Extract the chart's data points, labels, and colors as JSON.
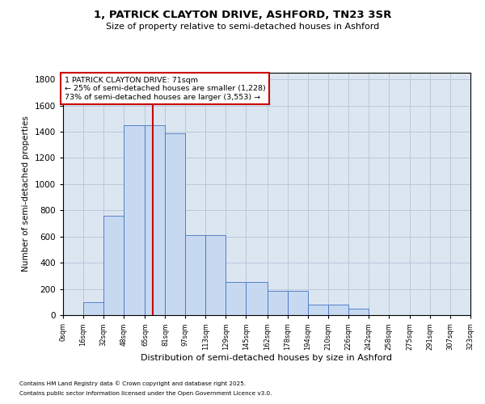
{
  "title_line1": "1, PATRICK CLAYTON DRIVE, ASHFORD, TN23 3SR",
  "title_line2": "Size of property relative to semi-detached houses in Ashford",
  "xlabel": "Distribution of semi-detached houses by size in Ashford",
  "ylabel": "Number of semi-detached properties",
  "footnote1": "Contains HM Land Registry data © Crown copyright and database right 2025.",
  "footnote2": "Contains public sector information licensed under the Open Government Licence v3.0.",
  "annotation_line1": "1 PATRICK CLAYTON DRIVE: 71sqm",
  "annotation_line2": "← 25% of semi-detached houses are smaller (1,228)",
  "annotation_line3": "73% of semi-detached houses are larger (3,553) →",
  "property_size": 71,
  "bar_edges": [
    0,
    16,
    32,
    48,
    65,
    81,
    97,
    113,
    129,
    145,
    162,
    178,
    194,
    210,
    226,
    242,
    258,
    275,
    291,
    307,
    323
  ],
  "bar_heights": [
    3,
    100,
    760,
    1450,
    1450,
    1390,
    610,
    610,
    255,
    255,
    183,
    183,
    83,
    83,
    50,
    3,
    3,
    3,
    3,
    3
  ],
  "bar_color": "#c6d9f1",
  "bar_edge_color": "#4472c4",
  "red_line_color": "#cc0000",
  "annotation_box_color": "#cc0000",
  "grid_color": "#b8c8dc",
  "background_color": "#dce6f1",
  "ylim": [
    0,
    1850
  ],
  "yticks": [
    0,
    200,
    400,
    600,
    800,
    1000,
    1200,
    1400,
    1600,
    1800
  ],
  "tick_labels": [
    "0sqm",
    "16sqm",
    "32sqm",
    "48sqm",
    "65sqm",
    "81sqm",
    "97sqm",
    "113sqm",
    "129sqm",
    "145sqm",
    "162sqm",
    "178sqm",
    "194sqm",
    "210sqm",
    "226sqm",
    "242sqm",
    "258sqm",
    "275sqm",
    "291sqm",
    "307sqm",
    "323sqm"
  ]
}
